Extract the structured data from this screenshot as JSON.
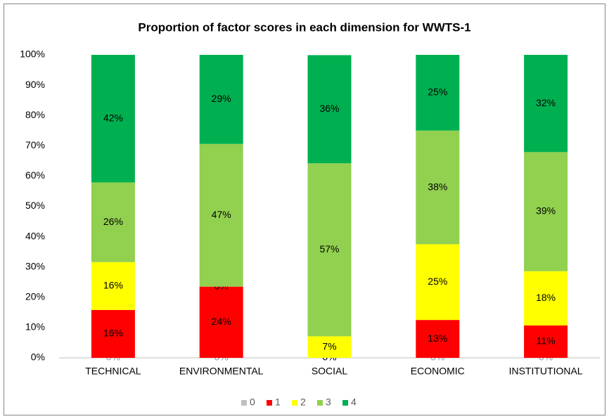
{
  "chart_data": {
    "type": "stacked_bar",
    "title": "Proportion of factor scores in each dimension for WWTS-1",
    "categories": [
      "TECHNICAL",
      "ENVIRONMENTAL",
      "SOCIAL",
      "ECONOMIC",
      "INSTITUTIONAL"
    ],
    "series": [
      {
        "name": "0",
        "color": "#bfbfbf",
        "values": [
          0,
          0,
          0,
          0,
          0
        ],
        "value_labels": [
          "0%",
          "0%",
          "0%",
          "0%",
          "0%"
        ]
      },
      {
        "name": "1",
        "color": "#ff0000",
        "values": [
          15.8,
          23.5,
          0,
          12.5,
          10.7
        ],
        "value_labels": [
          "16%",
          "24%",
          "0%",
          "13%",
          "11%"
        ]
      },
      {
        "name": "2",
        "color": "#ffff00",
        "values": [
          15.8,
          0,
          7.1,
          25,
          17.9
        ],
        "value_labels": [
          "16%",
          "0%",
          "7%",
          "25%",
          "18%"
        ]
      },
      {
        "name": "3",
        "color": "#92d050",
        "values": [
          26.3,
          47.1,
          57.1,
          37.5,
          39.3
        ],
        "value_labels": [
          "26%",
          "47%",
          "57%",
          "38%",
          "39%"
        ]
      },
      {
        "name": "4",
        "color": "#00b050",
        "values": [
          42.1,
          29.4,
          35.7,
          25,
          32.1
        ],
        "value_labels": [
          "42%",
          "29%",
          "36%",
          "25%",
          "32%"
        ]
      }
    ],
    "ylim": [
      0,
      100
    ],
    "yticks": [
      {
        "value": 0,
        "label": "0%"
      },
      {
        "value": 10,
        "label": "10%"
      },
      {
        "value": 20,
        "label": "20%"
      },
      {
        "value": 30,
        "label": "30%"
      },
      {
        "value": 40,
        "label": "40%"
      },
      {
        "value": 50,
        "label": "50%"
      },
      {
        "value": 60,
        "label": "60%"
      },
      {
        "value": 70,
        "label": "70%"
      },
      {
        "value": 80,
        "label": "80%"
      },
      {
        "value": 90,
        "label": "90%"
      },
      {
        "value": 100,
        "label": "100%"
      }
    ],
    "grid": false,
    "legend": "bottom"
  }
}
